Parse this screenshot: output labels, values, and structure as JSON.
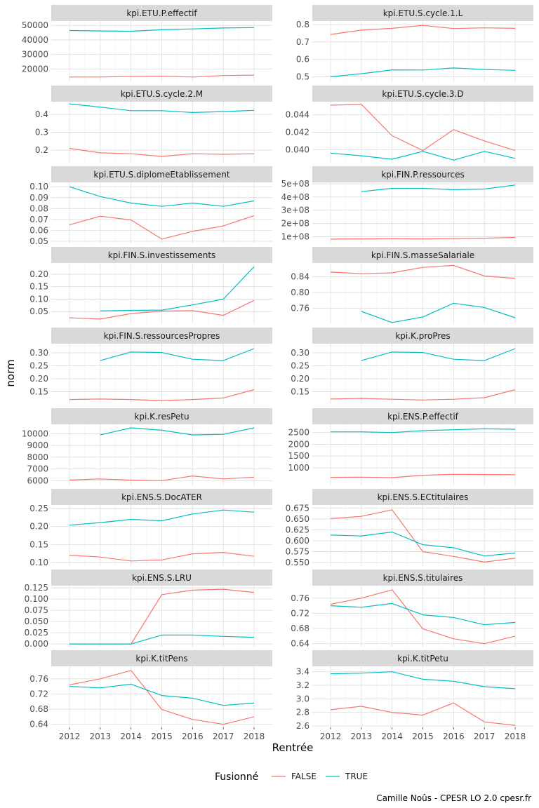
{
  "chart_data": {
    "type": "line",
    "xlabel": "Rentrée",
    "ylabel": "norm",
    "x": [
      2012,
      2013,
      2014,
      2015,
      2016,
      2017,
      2018
    ],
    "legend": {
      "title": "Fusionné",
      "position": "bottom",
      "entries": [
        "FALSE",
        "TRUE"
      ]
    },
    "colors": {
      "FALSE": "#f8766d",
      "TRUE": "#00bfc4",
      "strip_bg": "#d9d9d9",
      "grid": "#dedede"
    },
    "caption": "Camille Noûs - CPESR LO 2.0 cpesr.fr",
    "grid": true,
    "facets": [
      {
        "title": "kpi.ETU.P.effectif",
        "ylim": [
          11000,
          53000
        ],
        "yticks": [
          20000,
          30000,
          40000,
          50000
        ],
        "yticklabels": [
          "20000",
          "30000",
          "40000",
          "50000"
        ],
        "series": [
          {
            "name": "FALSE",
            "values": [
              14500,
              14500,
              14900,
              15000,
              14500,
              15500,
              15800
            ]
          },
          {
            "name": "TRUE",
            "values": [
              46500,
              46200,
              46000,
              47000,
              47600,
              48200,
              48500
            ]
          }
        ]
      },
      {
        "title": "kpi.ETU.S.cycle.1.L",
        "ylim": [
          0.47,
          0.82
        ],
        "yticks": [
          0.5,
          0.6,
          0.7,
          0.8
        ],
        "yticklabels": [
          "0.5",
          "0.6",
          "0.7",
          "0.8"
        ],
        "series": [
          {
            "name": "FALSE",
            "values": [
              0.743,
              0.768,
              0.778,
              0.795,
              0.777,
              0.781,
              0.778
            ]
          },
          {
            "name": "TRUE",
            "values": [
              0.5,
              0.518,
              0.54,
              0.539,
              0.551,
              0.542,
              0.537
            ]
          }
        ]
      },
      {
        "title": "kpi.ETU.S.cycle.2.M",
        "ylim": [
          0.13,
          0.47
        ],
        "yticks": [
          0.2,
          0.3,
          0.4
        ],
        "yticklabels": [
          "0.2",
          "0.3",
          "0.4"
        ],
        "series": [
          {
            "name": "FALSE",
            "values": [
              0.21,
              0.185,
              0.18,
              0.165,
              0.18,
              0.177,
              0.18
            ]
          },
          {
            "name": "TRUE",
            "values": [
              0.458,
              0.44,
              0.42,
              0.42,
              0.41,
              0.415,
              0.422
            ]
          }
        ]
      },
      {
        "title": "kpi.ETU.S.cycle.3.D",
        "ylim": [
          0.0385,
          0.0455
        ],
        "yticks": [
          0.04,
          0.042,
          0.044
        ],
        "yticklabels": [
          "0.040",
          "0.042",
          "0.044"
        ],
        "series": [
          {
            "name": "FALSE",
            "values": [
              0.0451,
              0.0452,
              0.0416,
              0.0399,
              0.0423,
              0.041,
              0.0399
            ]
          },
          {
            "name": "TRUE",
            "values": [
              0.0396,
              0.0393,
              0.0389,
              0.0398,
              0.0388,
              0.0398,
              0.039
            ]
          }
        ]
      },
      {
        "title": "kpi.ETU.S.diplomeEtablissement",
        "ylim": [
          0.048,
          0.104
        ],
        "yticks": [
          0.05,
          0.06,
          0.07,
          0.08,
          0.09,
          0.1
        ],
        "yticklabels": [
          "0.05",
          "0.06",
          "0.07",
          "0.08",
          "0.09",
          "0.10"
        ],
        "series": [
          {
            "name": "FALSE",
            "values": [
              0.065,
              0.073,
              0.0695,
              0.052,
              0.059,
              0.064,
              0.0735
            ]
          },
          {
            "name": "TRUE",
            "values": [
              0.1,
              0.091,
              0.085,
              0.082,
              0.085,
              0.082,
              0.087
            ]
          }
        ]
      },
      {
        "title": "kpi.FIN.P.ressources",
        "ylim": [
          50000000,
          510000000
        ],
        "yticks": [
          100000000,
          200000000,
          300000000,
          400000000,
          500000000
        ],
        "yticklabels": [
          "1e+08",
          "2e+08",
          "3e+08",
          "4e+08",
          "5e+08"
        ],
        "series": [
          {
            "name": "FALSE",
            "values": [
              82000000,
              84000000,
              85000000,
              84000000,
              86000000,
              89000000,
              95000000
            ]
          },
          {
            "name": "TRUE",
            "values": [
              null,
              440000000,
              465000000,
              465000000,
              455000000,
              460000000,
              490000000
            ]
          }
        ]
      },
      {
        "title": "kpi.FIN.S.investissements",
        "ylim": [
          0,
          0.245
        ],
        "yticks": [
          0.05,
          0.1,
          0.15,
          0.2
        ],
        "yticklabels": [
          "0.05",
          "0.10",
          "0.15",
          "0.20"
        ],
        "series": [
          {
            "name": "FALSE",
            "values": [
              0.025,
              0.02,
              0.042,
              0.052,
              0.054,
              0.035,
              0.095
            ]
          },
          {
            "name": "TRUE",
            "values": [
              null,
              0.053,
              0.055,
              0.056,
              0.077,
              0.1,
              0.23
            ]
          }
        ]
      },
      {
        "title": "kpi.FIN.S.masseSalariale",
        "ylim": [
          0.72,
          0.875
        ],
        "yticks": [
          0.76,
          0.8,
          0.84
        ],
        "yticklabels": [
          "0.76",
          "0.80",
          "0.84"
        ],
        "series": [
          {
            "name": "FALSE",
            "values": [
              0.852,
              0.848,
              0.85,
              0.864,
              0.869,
              0.842,
              0.836
            ]
          },
          {
            "name": "TRUE",
            "values": [
              null,
              0.752,
              0.724,
              0.738,
              0.773,
              0.762,
              0.736
            ]
          }
        ]
      },
      {
        "title": "kpi.FIN.S.ressourcesPropres",
        "ylim": [
          0.1,
          0.335
        ],
        "yticks": [
          0.15,
          0.2,
          0.25,
          0.3
        ],
        "yticklabels": [
          "0.15",
          "0.20",
          "0.25",
          "0.30"
        ],
        "series": [
          {
            "name": "FALSE",
            "values": [
              0.12,
              0.122,
              0.12,
              0.116,
              0.12,
              0.126,
              0.158
            ]
          },
          {
            "name": "TRUE",
            "values": [
              null,
              0.27,
              0.303,
              0.301,
              0.275,
              0.27,
              0.316
            ]
          }
        ]
      },
      {
        "title": "kpi.K.proPres",
        "ylim": [
          0.1,
          0.335
        ],
        "yticks": [
          0.15,
          0.2,
          0.25,
          0.3
        ],
        "yticklabels": [
          "0.15",
          "0.20",
          "0.25",
          "0.30"
        ],
        "series": [
          {
            "name": "FALSE",
            "values": [
              0.122,
              0.124,
              0.121,
              0.118,
              0.121,
              0.127,
              0.158
            ]
          },
          {
            "name": "TRUE",
            "values": [
              null,
              0.27,
              0.303,
              0.301,
              0.275,
              0.27,
              0.316
            ]
          }
        ]
      },
      {
        "title": "kpi.K.resPetu",
        "ylim": [
          5600,
          10800
        ],
        "yticks": [
          6000,
          7000,
          8000,
          9000,
          10000
        ],
        "yticklabels": [
          "6000",
          "7000",
          "8000",
          "9000",
          "10000"
        ],
        "series": [
          {
            "name": "FALSE",
            "values": [
              6050,
              6150,
              6050,
              6000,
              6400,
              6150,
              6300
            ]
          },
          {
            "name": "TRUE",
            "values": [
              null,
              9900,
              10500,
              10300,
              9900,
              9950,
              10500
            ]
          }
        ]
      },
      {
        "title": "kpi.ENS.P.effectif",
        "ylim": [
          250,
          2850
        ],
        "yticks": [
          1000,
          1500,
          2000,
          2500
        ],
        "yticklabels": [
          "1000",
          "1500",
          "2000",
          "2500"
        ],
        "series": [
          {
            "name": "FALSE",
            "values": [
              590,
              600,
              580,
              680,
              720,
              710,
              700
            ]
          },
          {
            "name": "TRUE",
            "values": [
              2530,
              2530,
              2500,
              2580,
              2620,
              2660,
              2640
            ]
          }
        ]
      },
      {
        "title": "kpi.ENS.S.DocATER",
        "ylim": [
          0.09,
          0.26
        ],
        "yticks": [
          0.1,
          0.15,
          0.2,
          0.25
        ],
        "yticklabels": [
          "0.10",
          "0.15",
          "0.20",
          "0.25"
        ],
        "series": [
          {
            "name": "FALSE",
            "values": [
              0.12,
              0.115,
              0.104,
              0.107,
              0.124,
              0.128,
              0.117
            ]
          },
          {
            "name": "TRUE",
            "values": [
              0.204,
              0.211,
              0.22,
              0.216,
              0.235,
              0.246,
              0.24
            ]
          }
        ]
      },
      {
        "title": "kpi.ENS.S.ECtitulaires",
        "ylim": [
          0.542,
          0.682
        ],
        "yticks": [
          0.55,
          0.575,
          0.6,
          0.625,
          0.65,
          0.675
        ],
        "yticklabels": [
          "0.550",
          "0.575",
          "0.600",
          "0.625",
          "0.650",
          "0.675"
        ],
        "series": [
          {
            "name": "FALSE",
            "values": [
              0.651,
              0.656,
              0.671,
              0.575,
              0.564,
              0.551,
              0.56
            ]
          },
          {
            "name": "TRUE",
            "values": [
              0.613,
              0.611,
              0.62,
              0.591,
              0.584,
              0.565,
              0.572
            ]
          }
        ]
      },
      {
        "title": "kpi.ENS.S.LRU",
        "ylim": [
          -0.006,
          0.13
        ],
        "yticks": [
          0,
          0.025,
          0.05,
          0.075,
          0.1,
          0.125
        ],
        "yticklabels": [
          "0.000",
          "0.025",
          "0.050",
          "0.075",
          "0.100",
          "0.125"
        ],
        "series": [
          {
            "name": "FALSE",
            "values": [
              0,
              0,
              0,
              0.11,
              0.12,
              0.122,
              0.115
            ]
          },
          {
            "name": "TRUE",
            "values": [
              0,
              0,
              0,
              0.02,
              0.02,
              0.017,
              0.015
            ]
          }
        ]
      },
      {
        "title": "kpi.ENS.S.titulaires",
        "ylim": [
          0.632,
          0.793
        ],
        "yticks": [
          0.64,
          0.68,
          0.72,
          0.76
        ],
        "yticklabels": [
          "0.64",
          "0.68",
          "0.72",
          "0.76"
        ],
        "series": [
          {
            "name": "FALSE",
            "values": [
              0.744,
              0.76,
              0.782,
              0.679,
              0.653,
              0.64,
              0.66
            ]
          },
          {
            "name": "TRUE",
            "values": [
              0.74,
              0.736,
              0.746,
              0.716,
              0.709,
              0.69,
              0.696
            ]
          }
        ]
      },
      {
        "title": "kpi.K.titPens",
        "ylim": [
          0.632,
          0.793
        ],
        "yticks": [
          0.64,
          0.68,
          0.72,
          0.76
        ],
        "yticklabels": [
          "0.64",
          "0.68",
          "0.72",
          "0.76"
        ],
        "series": [
          {
            "name": "FALSE",
            "values": [
              0.744,
              0.76,
              0.782,
              0.679,
              0.653,
              0.64,
              0.66
            ]
          },
          {
            "name": "TRUE",
            "values": [
              0.74,
              0.736,
              0.746,
              0.716,
              0.709,
              0.69,
              0.696
            ]
          }
        ]
      },
      {
        "title": "kpi.K.titPetu",
        "ylim": [
          2.58,
          3.48
        ],
        "yticks": [
          2.6,
          2.8,
          3.0,
          3.2,
          3.4
        ],
        "yticklabels": [
          "2.6",
          "2.8",
          "3.0",
          "3.2",
          "3.4"
        ],
        "series": [
          {
            "name": "FALSE",
            "values": [
              2.84,
              2.89,
              2.8,
              2.76,
              2.94,
              2.66,
              2.61
            ]
          },
          {
            "name": "TRUE",
            "values": [
              3.37,
              3.38,
              3.4,
              3.29,
              3.26,
              3.18,
              3.15
            ]
          }
        ]
      }
    ]
  }
}
